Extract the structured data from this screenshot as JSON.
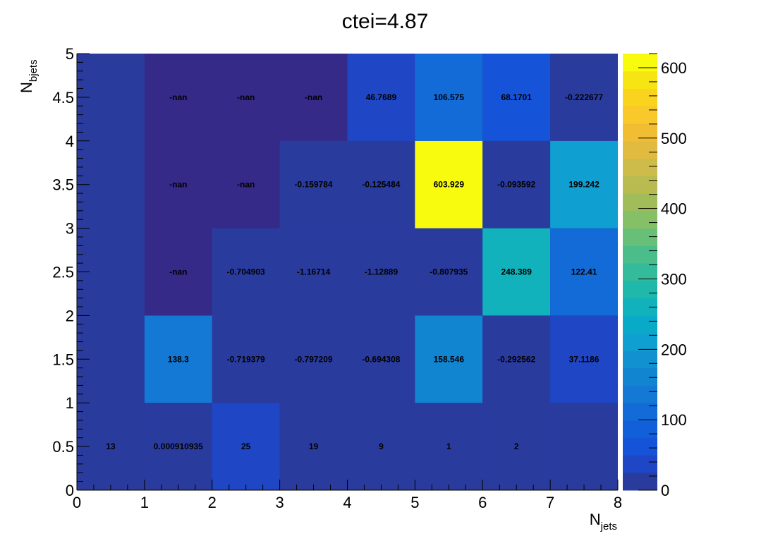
{
  "chart_data": {
    "type": "heatmap",
    "title": "ctei=4.87",
    "xlabel": {
      "base": "N",
      "sub": "jets"
    },
    "ylabel": {
      "base": "N",
      "sub": "bjets"
    },
    "xlim": [
      0,
      8
    ],
    "ylim": [
      0,
      5
    ],
    "x_bin_edges": [
      0,
      1,
      2,
      3,
      4,
      5,
      6,
      7,
      8
    ],
    "y_bin_edges": [
      0,
      1,
      2,
      3,
      4,
      5
    ],
    "x_tick_labels": [
      "0",
      "1",
      "2",
      "3",
      "4",
      "5",
      "6",
      "7",
      "8"
    ],
    "y_tick_labels": [
      "0",
      "0.5",
      "1",
      "1.5",
      "2",
      "2.5",
      "3",
      "3.5",
      "4",
      "4.5",
      "5"
    ],
    "colorbar": {
      "min": 0,
      "max": 620,
      "tick_labels": [
        "0",
        "100",
        "200",
        "300",
        "400",
        "500",
        "600"
      ],
      "palette": "viridis-like"
    },
    "cells": [
      {
        "x": 0.5,
        "y": 0.5,
        "value": 13,
        "label": "13"
      },
      {
        "x": 1.5,
        "y": 0.5,
        "value": 0.000910935,
        "label": "0.000910935"
      },
      {
        "x": 2.5,
        "y": 0.5,
        "value": 25,
        "label": "25"
      },
      {
        "x": 3.5,
        "y": 0.5,
        "value": 19,
        "label": "19"
      },
      {
        "x": 4.5,
        "y": 0.5,
        "value": 9,
        "label": "9"
      },
      {
        "x": 5.5,
        "y": 0.5,
        "value": 1,
        "label": "1"
      },
      {
        "x": 6.5,
        "y": 0.5,
        "value": 2,
        "label": "2"
      },
      {
        "x": 1.5,
        "y": 1.5,
        "value": 138.3,
        "label": "138.3"
      },
      {
        "x": 2.5,
        "y": 1.5,
        "value": -0.719379,
        "label": "-0.719379"
      },
      {
        "x": 3.5,
        "y": 1.5,
        "value": -0.797209,
        "label": "-0.797209"
      },
      {
        "x": 4.5,
        "y": 1.5,
        "value": -0.694308,
        "label": "-0.694308"
      },
      {
        "x": 5.5,
        "y": 1.5,
        "value": 158.546,
        "label": "158.546"
      },
      {
        "x": 6.5,
        "y": 1.5,
        "value": -0.292562,
        "label": "-0.292562"
      },
      {
        "x": 7.5,
        "y": 1.5,
        "value": 37.1186,
        "label": "37.1186"
      },
      {
        "x": 1.5,
        "y": 2.5,
        "value": null,
        "label": "-nan"
      },
      {
        "x": 2.5,
        "y": 2.5,
        "value": -0.704903,
        "label": "-0.704903"
      },
      {
        "x": 3.5,
        "y": 2.5,
        "value": -1.16714,
        "label": "-1.16714"
      },
      {
        "x": 4.5,
        "y": 2.5,
        "value": -1.12889,
        "label": "-1.12889"
      },
      {
        "x": 5.5,
        "y": 2.5,
        "value": -0.807935,
        "label": "-0.807935"
      },
      {
        "x": 6.5,
        "y": 2.5,
        "value": 248.389,
        "label": "248.389"
      },
      {
        "x": 7.5,
        "y": 2.5,
        "value": 122.41,
        "label": "122.41"
      },
      {
        "x": 1.5,
        "y": 3.5,
        "value": null,
        "label": "-nan"
      },
      {
        "x": 2.5,
        "y": 3.5,
        "value": null,
        "label": "-nan"
      },
      {
        "x": 3.5,
        "y": 3.5,
        "value": -0.159784,
        "label": "-0.159784"
      },
      {
        "x": 4.5,
        "y": 3.5,
        "value": -0.125484,
        "label": "-0.125484"
      },
      {
        "x": 5.5,
        "y": 3.5,
        "value": 603.929,
        "label": "603.929"
      },
      {
        "x": 6.5,
        "y": 3.5,
        "value": -0.093592,
        "label": "-0.093592"
      },
      {
        "x": 7.5,
        "y": 3.5,
        "value": 199.242,
        "label": "199.242"
      },
      {
        "x": 1.5,
        "y": 4.5,
        "value": null,
        "label": "-nan"
      },
      {
        "x": 2.5,
        "y": 4.5,
        "value": null,
        "label": "-nan"
      },
      {
        "x": 3.5,
        "y": 4.5,
        "value": null,
        "label": "-nan"
      },
      {
        "x": 4.5,
        "y": 4.5,
        "value": 46.7689,
        "label": "46.7689"
      },
      {
        "x": 5.5,
        "y": 4.5,
        "value": 106.575,
        "label": "106.575"
      },
      {
        "x": 6.5,
        "y": 4.5,
        "value": 68.1701,
        "label": "68.1701"
      },
      {
        "x": 7.5,
        "y": 4.5,
        "value": -0.222677,
        "label": "-0.222677"
      }
    ],
    "colors": {
      "background_bin": "#2a3b9e",
      "nan_bin": "#352a87",
      "axis": "#000000"
    },
    "grid": false
  }
}
